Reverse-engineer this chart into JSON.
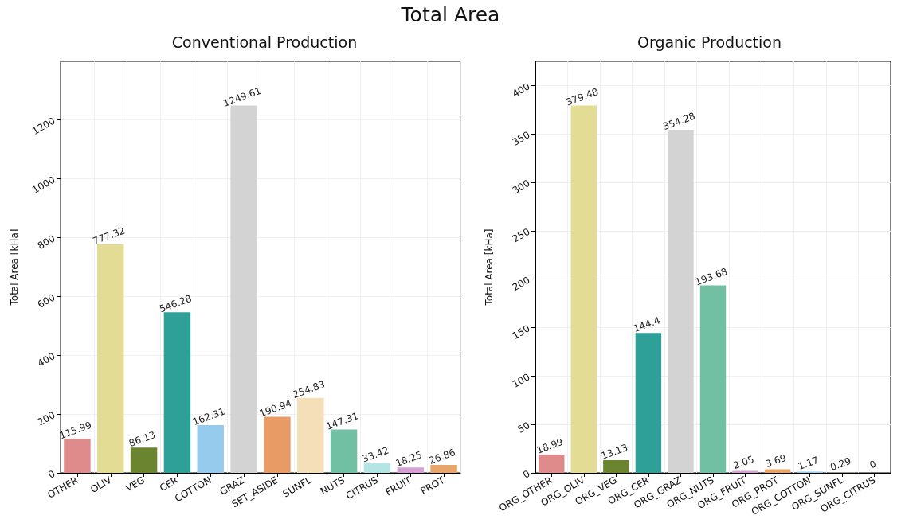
{
  "chart_data": [
    {
      "type": "bar",
      "title": "Total Area",
      "subtitle": "Conventional Production",
      "ylabel": "Total Area [kHa]",
      "categories": [
        "OTHER",
        "OLIV",
        "VEG",
        "CER",
        "COTTON",
        "GRAZ",
        "SET_ASIDE",
        "SUNFL",
        "NUTS",
        "CITRUS",
        "FRUIT",
        "PROT"
      ],
      "values": [
        115.99,
        777.32,
        86.13,
        546.28,
        162.31,
        1249.61,
        190.94,
        254.83,
        147.31,
        33.42,
        18.25,
        26.86
      ],
      "colors": [
        "#e08b8b",
        "#e2dc95",
        "#6b8430",
        "#2fa098",
        "#97cbee",
        "#d3d3d3",
        "#e99b65",
        "#f5dfb8",
        "#72c0a3",
        "#b2e5e3",
        "#d6a0d6",
        "#e8a56a"
      ],
      "ylim": [
        0,
        1399.56
      ],
      "yticks": [
        0,
        200,
        400,
        600,
        800,
        1000,
        1200
      ],
      "grid": true,
      "data_labels": true
    },
    {
      "type": "bar",
      "subtitle": "Organic Production",
      "ylabel": "Total Area [kHa]",
      "categories": [
        "ORG_OTHER",
        "ORG_OLIV",
        "ORG_VEG",
        "ORG_CER",
        "ORG_GRAZ",
        "ORG_NUTS",
        "ORG_FRUIT",
        "ORG_PROT",
        "ORG_COTTON",
        "ORG_SUNFL",
        "ORG_CITRUS"
      ],
      "values": [
        18.99,
        379.48,
        13.13,
        144.4,
        354.28,
        193.68,
        2.05,
        3.69,
        1.17,
        0.29,
        0
      ],
      "colors": [
        "#e08b8b",
        "#e2dc95",
        "#6b8430",
        "#2fa098",
        "#d3d3d3",
        "#72c0a3",
        "#d6a0d6",
        "#e8a56a",
        "#97cbee",
        "#f5dfb8",
        "#b2e5e3"
      ],
      "ylim": [
        0,
        425.02
      ],
      "yticks": [
        0,
        50,
        100,
        150,
        200,
        250,
        300,
        350,
        400
      ],
      "grid": true,
      "data_labels": true
    }
  ]
}
